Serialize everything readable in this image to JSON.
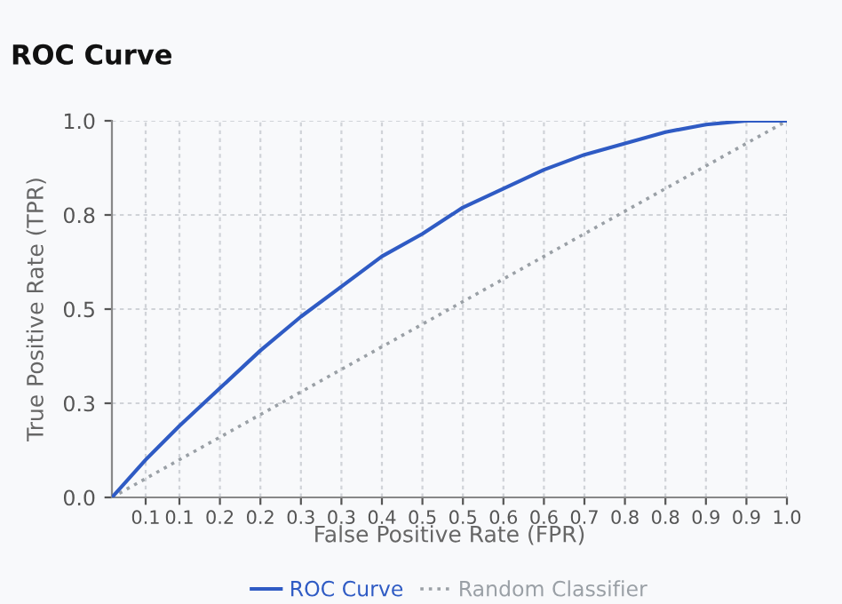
{
  "chart_data": {
    "type": "line",
    "title": "ROC Curve",
    "xlabel": "False Positive Rate (FPR)",
    "ylabel": "True Positive Rate (TPR)",
    "x": [
      0,
      0.05,
      0.1,
      0.16,
      0.22,
      0.28,
      0.34,
      0.4,
      0.46,
      0.52,
      0.58,
      0.64,
      0.7,
      0.76,
      0.82,
      0.88,
      0.94,
      1.0
    ],
    "series": [
      {
        "name": "ROC Curve",
        "color": "#2f5bc4",
        "line_style": "solid",
        "values": [
          0,
          0.1,
          0.19,
          0.29,
          0.39,
          0.48,
          0.56,
          0.64,
          0.7,
          0.77,
          0.82,
          0.87,
          0.91,
          0.94,
          0.97,
          0.99,
          1.0,
          1.0
        ]
      },
      {
        "name": "Random Classifier",
        "color": "#9aa0a6",
        "line_style": "dotted",
        "x": [
          0,
          1.0
        ],
        "values": [
          0,
          1.0
        ]
      }
    ],
    "xlim": [
      0,
      1.0
    ],
    "ylim": [
      0,
      1.0
    ],
    "xticks": [
      {
        "value": 0.05,
        "label": "0.1"
      },
      {
        "value": 0.1,
        "label": "0.1"
      },
      {
        "value": 0.16,
        "label": "0.2"
      },
      {
        "value": 0.22,
        "label": "0.2"
      },
      {
        "value": 0.28,
        "label": "0.3"
      },
      {
        "value": 0.34,
        "label": "0.3"
      },
      {
        "value": 0.4,
        "label": "0.4"
      },
      {
        "value": 0.46,
        "label": "0.5"
      },
      {
        "value": 0.52,
        "label": "0.5"
      },
      {
        "value": 0.58,
        "label": "0.6"
      },
      {
        "value": 0.64,
        "label": "0.6"
      },
      {
        "value": 0.7,
        "label": "0.7"
      },
      {
        "value": 0.76,
        "label": "0.8"
      },
      {
        "value": 0.82,
        "label": "0.8"
      },
      {
        "value": 0.88,
        "label": "0.9"
      },
      {
        "value": 0.94,
        "label": "0.9"
      },
      {
        "value": 1.0,
        "label": "1.0"
      }
    ],
    "yticks": [
      {
        "value": 0,
        "label": "0.0"
      },
      {
        "value": 0.25,
        "label": "0.3"
      },
      {
        "value": 0.5,
        "label": "0.5"
      },
      {
        "value": 0.75,
        "label": "0.8"
      },
      {
        "value": 1.0,
        "label": "1.0"
      }
    ],
    "grid": true,
    "legend": "bottom"
  }
}
